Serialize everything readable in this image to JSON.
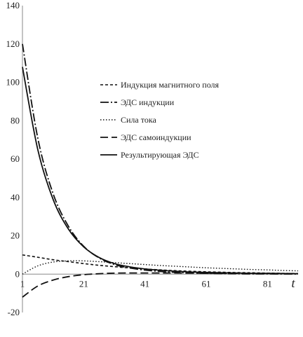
{
  "chart_data": {
    "type": "line",
    "title": "",
    "xlabel": "t",
    "ylabel": "",
    "xlim": [
      1,
      91
    ],
    "ylim": [
      -20,
      140
    ],
    "x_ticks": [
      "1",
      "21",
      "41",
      "61",
      "81"
    ],
    "x_tick_values": [
      1,
      21,
      41,
      61,
      81
    ],
    "y_ticks": [
      "-20",
      "0",
      "20",
      "40",
      "60",
      "80",
      "100",
      "120",
      "140"
    ],
    "y_tick_values": [
      -20,
      0,
      20,
      40,
      60,
      80,
      100,
      120,
      140
    ],
    "grid": false,
    "legend_position": "right",
    "x": [
      1,
      6,
      11,
      16,
      21,
      26,
      31,
      36,
      41,
      46,
      51,
      56,
      61,
      66,
      71,
      76,
      81,
      86,
      91
    ],
    "series": [
      {
        "name": "Индукция магнитного поля",
        "style": "short-dash",
        "values": [
          10,
          8.8,
          7.5,
          6.5,
          5.5,
          4.6,
          3.9,
          3.2,
          2.7,
          2.2,
          1.8,
          1.5,
          1.2,
          1.0,
          0.8,
          0.7,
          0.5,
          0.4,
          0.3
        ]
      },
      {
        "name": "ЭДС индукции",
        "style": "dash-dot",
        "values": [
          120,
          71,
          42,
          25,
          14.5,
          8.5,
          5.0,
          3.2,
          2.1,
          1.4,
          0.9,
          0.6,
          0.4,
          0.3,
          0.2,
          0.1,
          0.1,
          0.05,
          0.03
        ]
      },
      {
        "name": "Сила тока",
        "style": "dotted",
        "values": [
          0,
          4.3,
          6.3,
          6.9,
          6.9,
          6.5,
          6.0,
          5.5,
          5.0,
          4.5,
          4.1,
          3.7,
          3.3,
          3.0,
          2.7,
          2.4,
          2.2,
          1.9,
          1.7
        ]
      },
      {
        "name": "ЭДС самоиндукции",
        "style": "long-dash",
        "values": [
          -12,
          -6.2,
          -3.1,
          -1.3,
          -0.3,
          0.2,
          0.5,
          0.6,
          0.6,
          0.6,
          0.6,
          0.5,
          0.5,
          0.4,
          0.4,
          0.3,
          0.3,
          0.3,
          0.2
        ]
      },
      {
        "name": "Результирующая  ЭДС",
        "style": "solid",
        "values": [
          108,
          65,
          39,
          23.5,
          14.2,
          8.7,
          5.5,
          3.8,
          2.7,
          2.0,
          1.5,
          1.1,
          0.9,
          0.7,
          0.6,
          0.4,
          0.4,
          0.3,
          0.2
        ]
      }
    ]
  }
}
